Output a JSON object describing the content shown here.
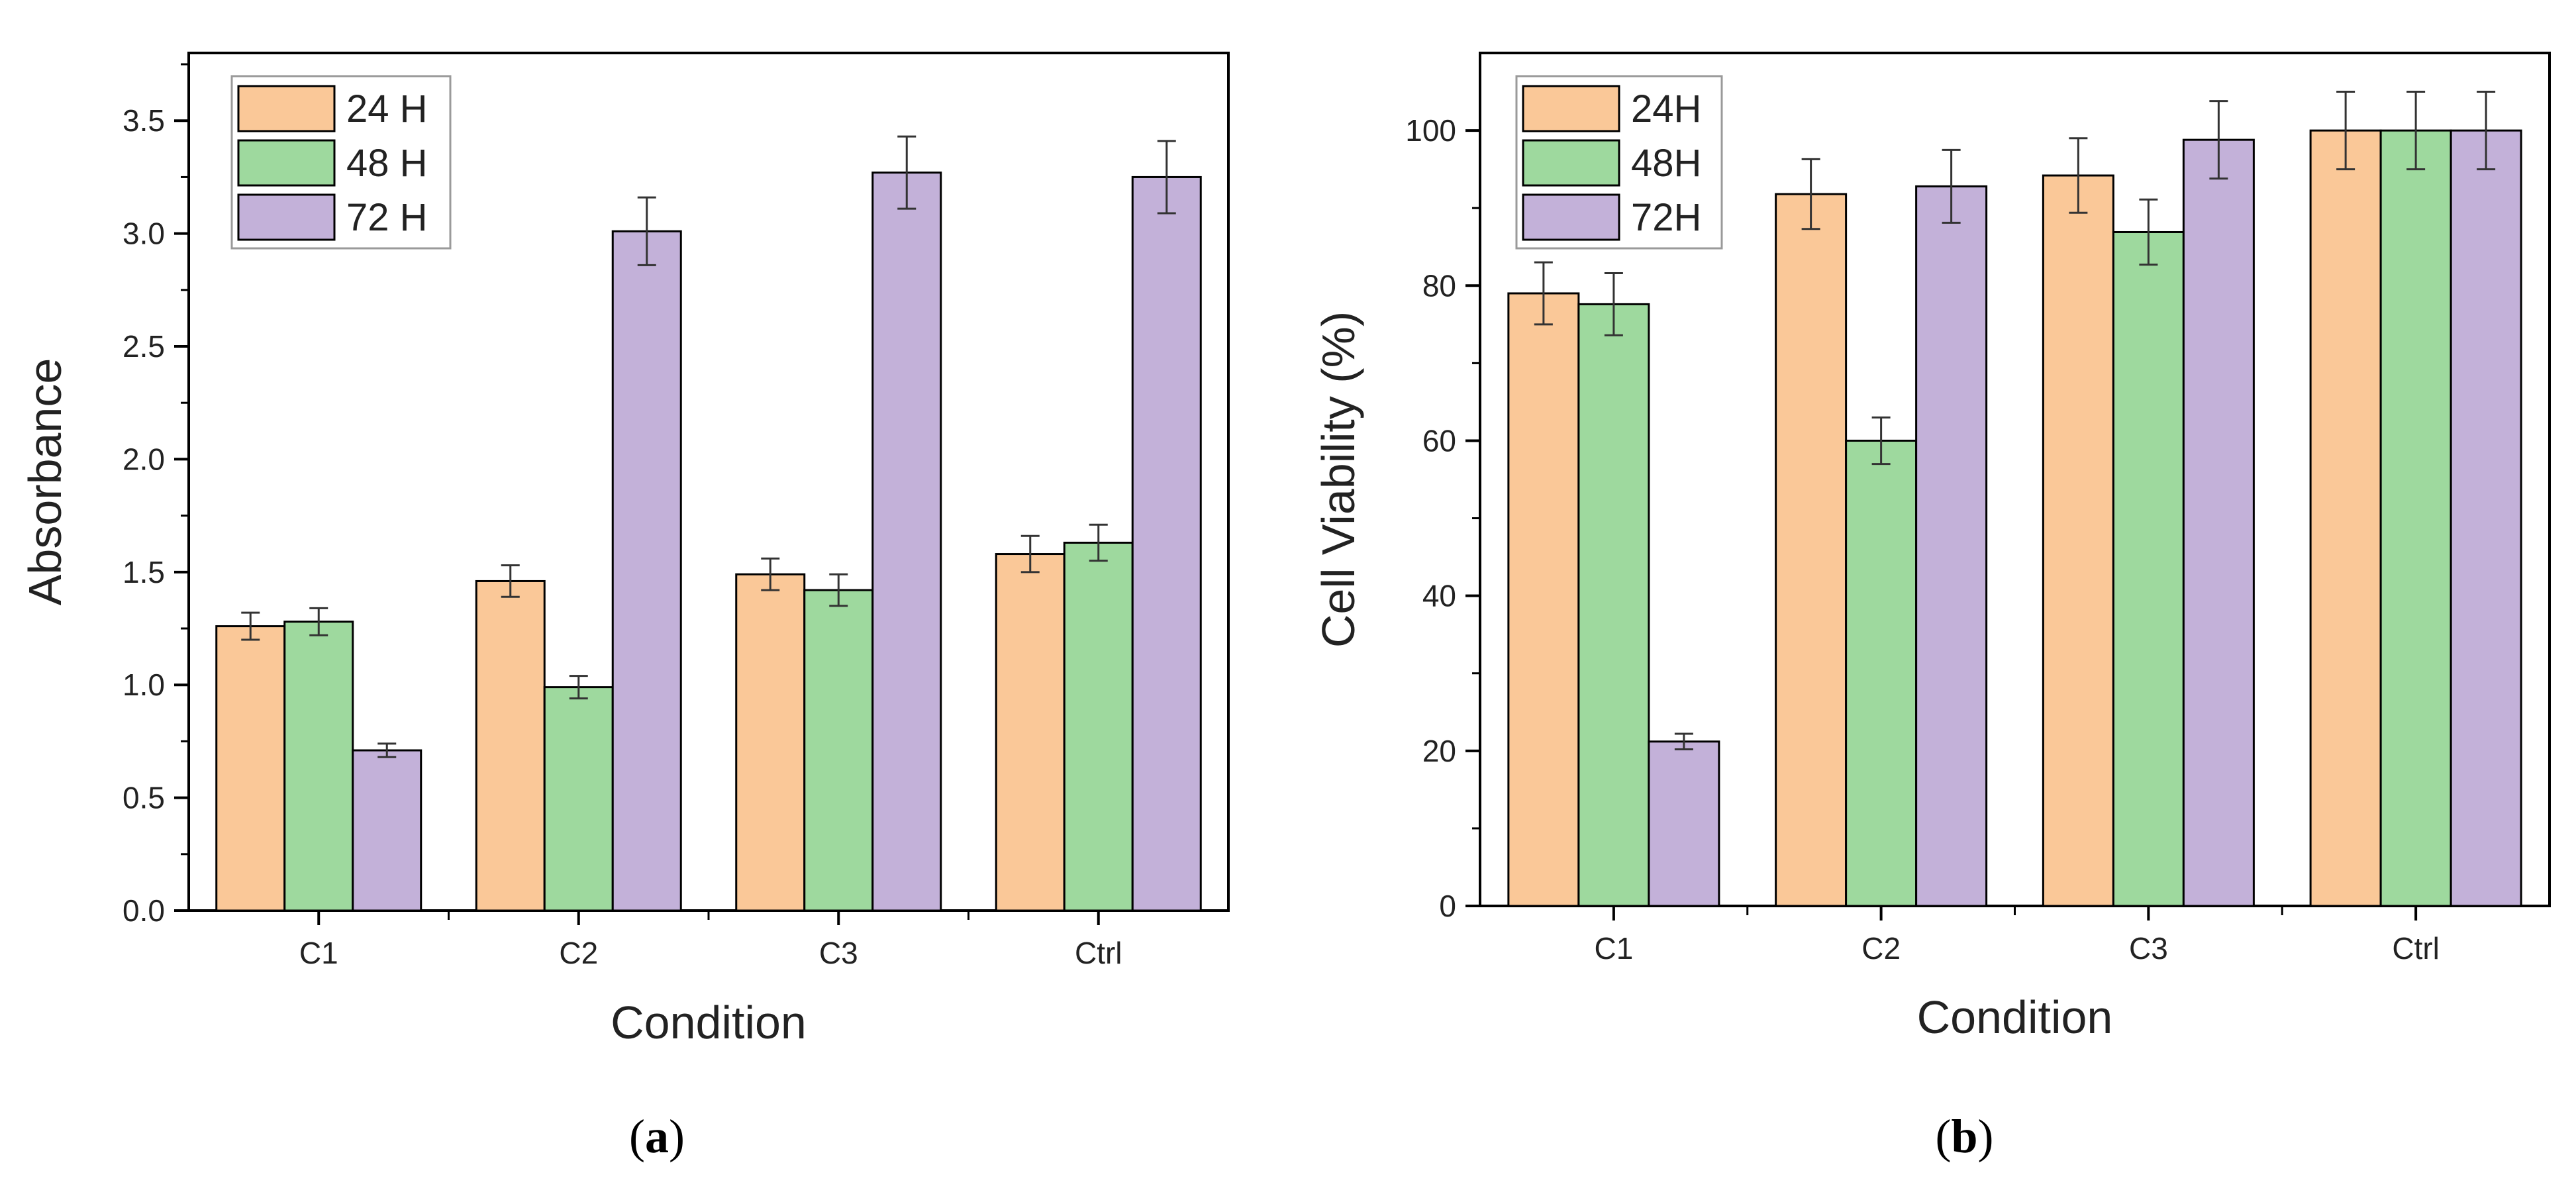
{
  "chart_data": [
    {
      "type": "bar",
      "panel_label": "a",
      "xlabel": "Condition",
      "ylabel": "Absorbance",
      "categories": [
        "C1",
        "C2",
        "C3",
        "Ctrl"
      ],
      "ylim": [
        0,
        3.8
      ],
      "yticks": [
        0.0,
        0.5,
        1.0,
        1.5,
        2.0,
        2.5,
        3.0,
        3.5
      ],
      "ytick_labels": [
        "0.0",
        "0.5",
        "1.0",
        "1.5",
        "2.0",
        "2.5",
        "3.0",
        "3.5"
      ],
      "legend_position": "top-left",
      "series": [
        {
          "name": "24 H",
          "color": "#FAC898",
          "values": [
            1.26,
            1.46,
            1.49,
            1.58
          ],
          "errors": [
            0.06,
            0.07,
            0.07,
            0.08
          ]
        },
        {
          "name": "48 H",
          "color": "#9ED99E",
          "values": [
            1.28,
            0.99,
            1.42,
            1.63
          ],
          "errors": [
            0.06,
            0.05,
            0.07,
            0.08
          ]
        },
        {
          "name": "72 H",
          "color": "#C3B1D9",
          "values": [
            0.71,
            3.01,
            3.27,
            3.25
          ],
          "errors": [
            0.03,
            0.15,
            0.16,
            0.16
          ]
        }
      ]
    },
    {
      "type": "bar",
      "panel_label": "b",
      "xlabel": "Condition",
      "ylabel": "Cell Viability (%)",
      "categories": [
        "C1",
        "C2",
        "C3",
        "Ctrl"
      ],
      "ylim": [
        0,
        110
      ],
      "yticks": [
        0,
        20,
        40,
        60,
        80,
        100
      ],
      "ytick_labels": [
        "0",
        "20",
        "40",
        "60",
        "80",
        "100"
      ],
      "legend_position": "top-left",
      "series": [
        {
          "name": "24H",
          "color": "#FAC898",
          "values": [
            79,
            91.8,
            94.2,
            100
          ],
          "errors": [
            4,
            4.5,
            4.8,
            5
          ]
        },
        {
          "name": "48H",
          "color": "#9ED99E",
          "values": [
            77.6,
            60,
            86.9,
            100
          ],
          "errors": [
            4,
            3,
            4.2,
            5
          ]
        },
        {
          "name": "72H",
          "color": "#C3B1D9",
          "values": [
            21.2,
            92.8,
            98.8,
            100
          ],
          "errors": [
            1,
            4.7,
            5,
            5
          ]
        }
      ]
    }
  ]
}
